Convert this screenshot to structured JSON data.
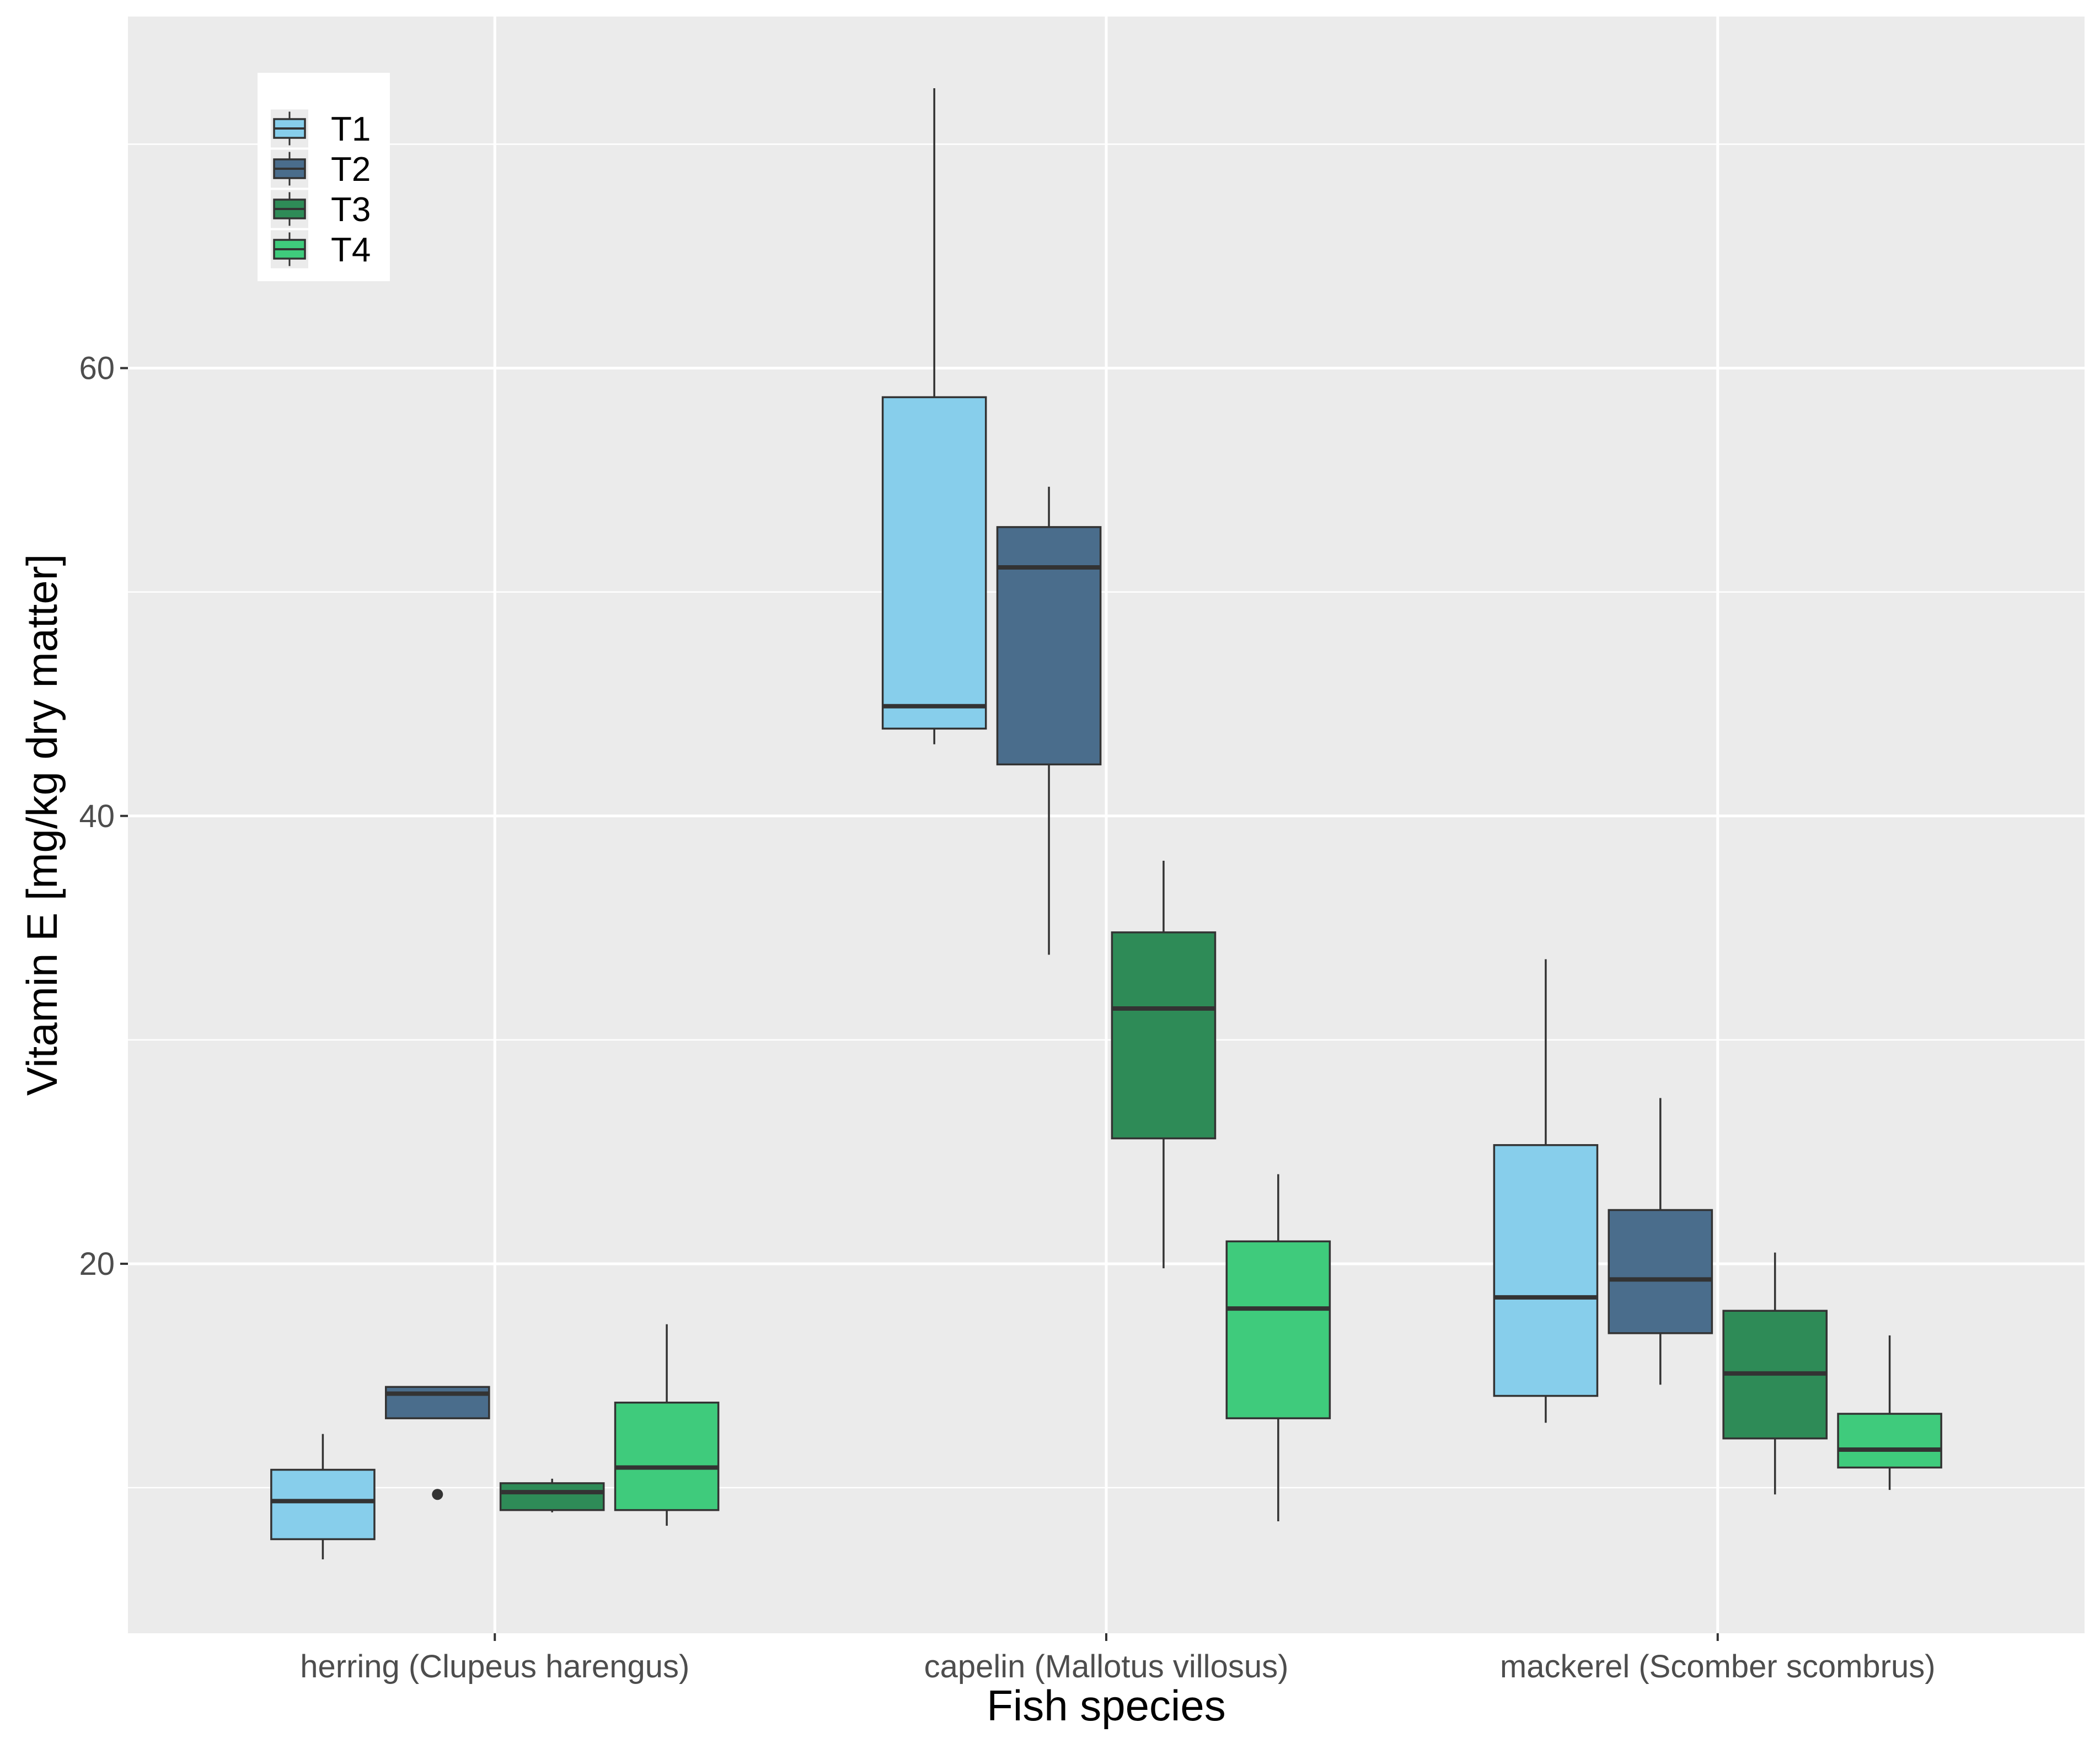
{
  "chart_data": {
    "type": "boxplot",
    "xlabel": "Fish species",
    "ylabel": "Vitamin E [mg/kg dry matter]",
    "ylim": [
      3.5,
      75.7
    ],
    "yticks": [
      20,
      40,
      60
    ],
    "categories": [
      "herring (Clupeus harengus)",
      "capelin (Mallotus villosus)",
      "mackerel (Scomber scombrus)"
    ],
    "legend": {
      "position": "top-left",
      "title": ""
    },
    "series": [
      {
        "name": "T1",
        "color": "#87CEEB",
        "boxes": [
          {
            "min": 6.8,
            "q1": 7.7,
            "median": 9.4,
            "q3": 10.8,
            "max": 12.4,
            "outliers": []
          },
          {
            "min": 43.2,
            "q1": 43.9,
            "median": 44.9,
            "q3": 58.7,
            "max": 72.5,
            "outliers": []
          },
          {
            "min": 12.9,
            "q1": 14.1,
            "median": 18.5,
            "q3": 25.3,
            "max": 33.6,
            "outliers": []
          }
        ]
      },
      {
        "name": "T2",
        "color": "#4A6D8C",
        "boxes": [
          {
            "min": 13.1,
            "q1": 13.1,
            "median": 14.2,
            "q3": 14.5,
            "max": 14.5,
            "outliers": [
              9.7
            ]
          },
          {
            "min": 33.8,
            "q1": 42.3,
            "median": 51.1,
            "q3": 52.9,
            "max": 54.7,
            "outliers": []
          },
          {
            "min": 14.6,
            "q1": 16.9,
            "median": 19.3,
            "q3": 22.4,
            "max": 27.4,
            "outliers": []
          }
        ]
      },
      {
        "name": "T3",
        "color": "#2E8B57",
        "boxes": [
          {
            "min": 8.9,
            "q1": 9.0,
            "median": 9.8,
            "q3": 10.2,
            "max": 10.4,
            "outliers": []
          },
          {
            "min": 19.8,
            "q1": 25.6,
            "median": 31.4,
            "q3": 34.8,
            "max": 38.0,
            "outliers": []
          },
          {
            "min": 9.7,
            "q1": 12.2,
            "median": 15.1,
            "q3": 17.9,
            "max": 20.5,
            "outliers": []
          }
        ]
      },
      {
        "name": "T4",
        "color": "#3FCB7C",
        "boxes": [
          {
            "min": 8.3,
            "q1": 9.0,
            "median": 10.9,
            "q3": 13.8,
            "max": 17.3,
            "outliers": []
          },
          {
            "min": 8.5,
            "q1": 13.1,
            "median": 18.0,
            "q3": 21.0,
            "max": 24.0,
            "outliers": []
          },
          {
            "min": 9.9,
            "q1": 10.9,
            "median": 11.7,
            "q3": 13.3,
            "max": 16.8,
            "outliers": []
          }
        ]
      }
    ]
  }
}
